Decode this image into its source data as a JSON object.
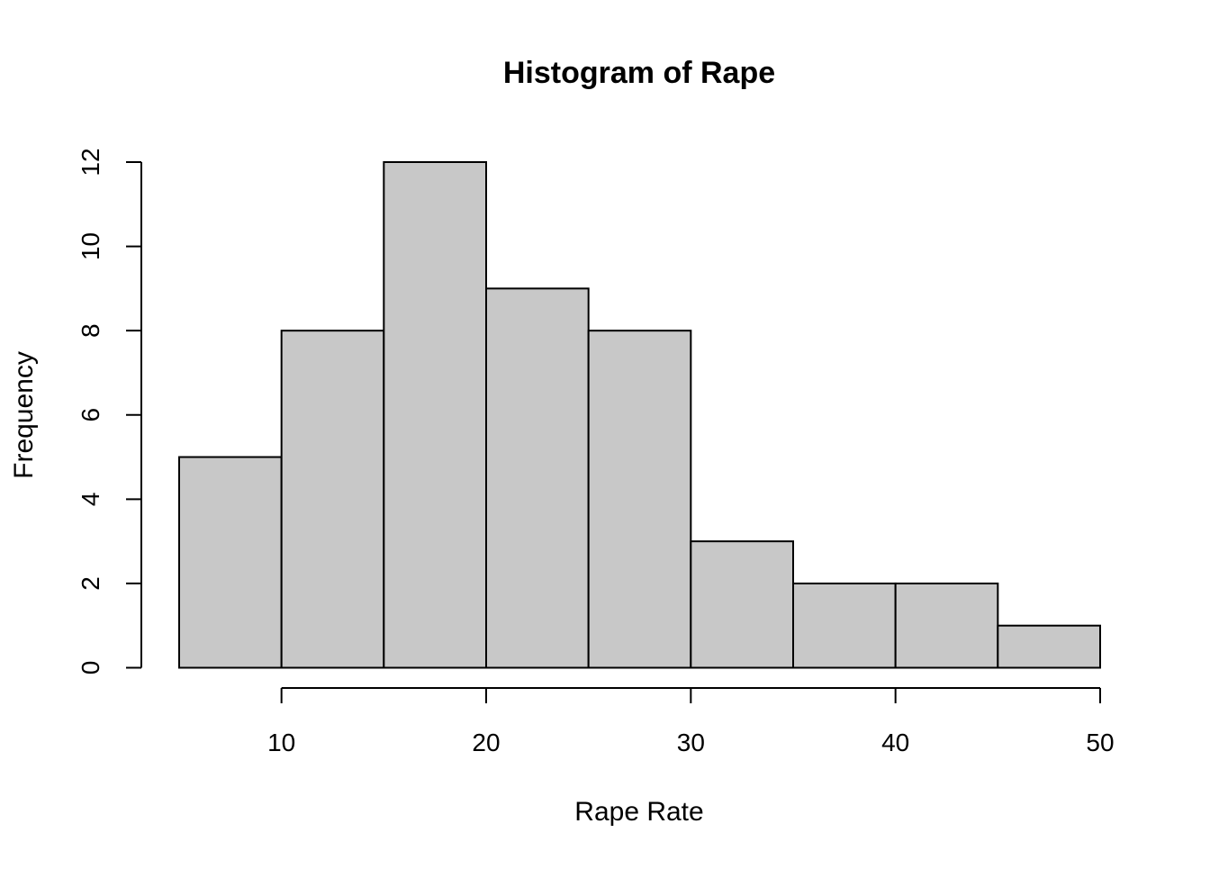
{
  "chart_data": {
    "type": "bar",
    "title": "Histogram of Rape",
    "xlabel": "Rape Rate",
    "ylabel": "Frequency",
    "bins": [
      {
        "from": 5,
        "to": 10,
        "count": 5
      },
      {
        "from": 10,
        "to": 15,
        "count": 8
      },
      {
        "from": 15,
        "to": 20,
        "count": 12
      },
      {
        "from": 20,
        "to": 25,
        "count": 9
      },
      {
        "from": 25,
        "to": 30,
        "count": 8
      },
      {
        "from": 30,
        "to": 35,
        "count": 3
      },
      {
        "from": 35,
        "to": 40,
        "count": 2
      },
      {
        "from": 40,
        "to": 45,
        "count": 2
      },
      {
        "from": 45,
        "to": 50,
        "count": 1
      }
    ],
    "xlim": [
      5,
      50
    ],
    "ylim": [
      0,
      12
    ],
    "x_ticks": [
      10,
      20,
      30,
      40,
      50
    ],
    "y_ticks": [
      0,
      2,
      4,
      6,
      8,
      10,
      12
    ],
    "grid": false,
    "bar_fill": "#c8c8c8",
    "bar_stroke": "#000000"
  }
}
